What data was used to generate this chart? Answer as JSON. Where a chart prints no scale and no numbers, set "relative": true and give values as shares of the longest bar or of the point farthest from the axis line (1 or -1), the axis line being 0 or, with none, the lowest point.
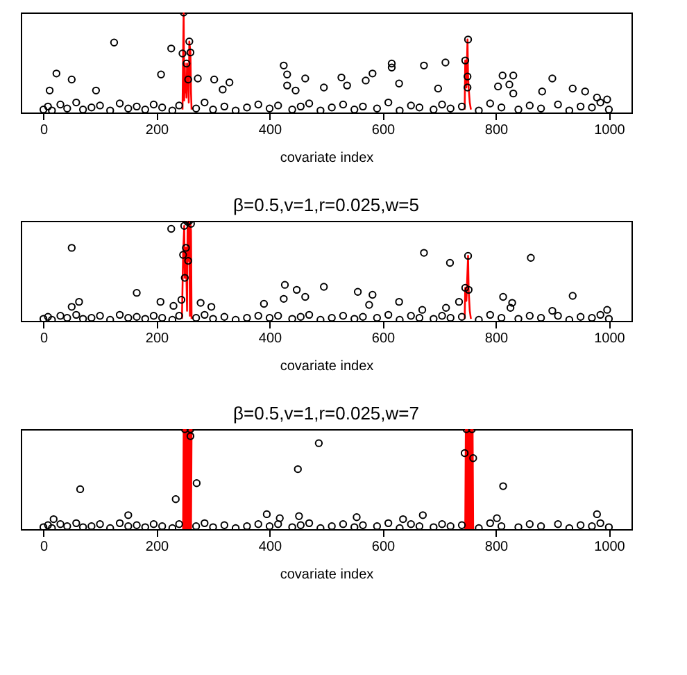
{
  "chart_data": [
    {
      "type": "scatter",
      "relative": true,
      "xlabel": "covariate index",
      "xlim": [
        -40,
        1040
      ],
      "xticks": [
        0,
        200,
        400,
        600,
        800,
        1000
      ],
      "tick_labels": "x",
      "series": [
        {
          "type": "line",
          "color": "#ff0000",
          "x": [
            246,
            247,
            248,
            249,
            250,
            251,
            252,
            253,
            254,
            256,
            257,
            258,
            260,
            261,
            262
          ],
          "values": [
            0.03,
            0.59,
            1.0,
            0.12,
            0.49,
            0.2,
            0.33,
            0.15,
            0.49,
            0.33,
            0.1,
            0.71,
            0.6,
            0.2,
            0.03
          ]
        },
        {
          "type": "line",
          "color": "#ff0000",
          "x": [
            745,
            746,
            748,
            750,
            751,
            752,
            754,
            756
          ],
          "values": [
            0.03,
            0.52,
            0.25,
            0.73,
            0.36,
            0.25,
            0.1,
            0.03
          ]
        },
        {
          "type": "scatter",
          "color": "#000000",
          "marker": "circle",
          "x": [
            0,
            8,
            15,
            30,
            42,
            58,
            70,
            85,
            100,
            118,
            135,
            150,
            165,
            180,
            195,
            210,
            228,
            240,
            270,
            285,
            300,
            320,
            340,
            360,
            380,
            400,
            415,
            440,
            455,
            470,
            490,
            510,
            530,
            550,
            565,
            590,
            610,
            630,
            650,
            665,
            690,
            705,
            720,
            740,
            770,
            790,
            810,
            840,
            860,
            880,
            910,
            930,
            950,
            970,
            985,
            1000,
            11,
            23,
            50,
            93,
            125,
            208,
            226,
            246,
            248,
            253,
            256,
            258,
            260,
            273,
            302,
            317,
            329,
            425,
            431,
            431,
            446,
            463,
            496,
            527,
            537,
            570,
            582,
            616,
            616,
            629,
            673,
            698,
            711,
            746,
            750,
            750,
            751,
            804,
            812,
            824,
            831,
            831,
            882,
            900,
            936,
            958,
            979,
            997
          ],
          "values": [
            0.03,
            0.06,
            0.02,
            0.08,
            0.04,
            0.1,
            0.03,
            0.05,
            0.07,
            0.02,
            0.09,
            0.04,
            0.06,
            0.03,
            0.08,
            0.05,
            0.02,
            0.07,
            0.04,
            0.1,
            0.03,
            0.06,
            0.02,
            0.05,
            0.08,
            0.04,
            0.07,
            0.03,
            0.06,
            0.09,
            0.02,
            0.05,
            0.08,
            0.03,
            0.06,
            0.04,
            0.1,
            0.02,
            0.07,
            0.05,
            0.03,
            0.08,
            0.04,
            0.06,
            0.02,
            0.09,
            0.05,
            0.03,
            0.07,
            0.04,
            0.08,
            0.02,
            0.06,
            0.05,
            0.1,
            0.03,
            0.22,
            0.39,
            0.33,
            0.22,
            0.7,
            0.38,
            0.64,
            0.59,
            1.0,
            0.49,
            0.33,
            0.71,
            0.6,
            0.34,
            0.33,
            0.23,
            0.3,
            0.47,
            0.38,
            0.27,
            0.22,
            0.34,
            0.25,
            0.35,
            0.27,
            0.32,
            0.39,
            0.49,
            0.45,
            0.29,
            0.47,
            0.24,
            0.5,
            0.52,
            0.36,
            0.25,
            0.73,
            0.26,
            0.37,
            0.28,
            0.37,
            0.19,
            0.21,
            0.34,
            0.24,
            0.21,
            0.15,
            0.13
          ]
        }
      ]
    },
    {
      "type": "scatter",
      "relative": true,
      "title": "β=0.5,v=1,r=0.025,w=5",
      "xlabel": "covariate index",
      "xlim": [
        -40,
        1040
      ],
      "xticks": [
        0,
        200,
        400,
        600,
        800,
        1000
      ],
      "tick_labels": "x",
      "series": [
        {
          "type": "line",
          "color": "#ff0000",
          "x": [
            245,
            247,
            249,
            250,
            252,
            254,
            255,
            256,
            257,
            258,
            259,
            260,
            261,
            262
          ],
          "values": [
            0.02,
            0.66,
            0.95,
            0.43,
            0.73,
            0.1,
            0.99,
            0.6,
            0.98,
            1.0,
            0.05,
            0.97,
            0.9,
            0.02
          ]
        },
        {
          "type": "line",
          "color": "#ff0000",
          "x": [
            745,
            746,
            748,
            751,
            752,
            754,
            756
          ],
          "values": [
            0.02,
            0.33,
            0.2,
            0.65,
            0.31,
            0.1,
            0.02
          ]
        },
        {
          "type": "scatter",
          "color": "#000000",
          "marker": "circle",
          "x": [
            0,
            8,
            15,
            30,
            42,
            58,
            70,
            85,
            100,
            118,
            135,
            150,
            165,
            180,
            195,
            210,
            228,
            240,
            270,
            285,
            300,
            320,
            340,
            360,
            380,
            400,
            415,
            440,
            455,
            470,
            490,
            510,
            530,
            550,
            565,
            590,
            610,
            630,
            650,
            665,
            690,
            705,
            720,
            740,
            770,
            790,
            810,
            840,
            860,
            880,
            910,
            930,
            950,
            970,
            985,
            1000,
            50,
            50,
            63,
            165,
            207,
            226,
            230,
            244,
            247,
            249,
            250,
            252,
            255,
            256,
            258,
            261,
            278,
            297,
            390,
            425,
            427,
            448,
            463,
            496,
            556,
            576,
            582,
            629,
            670,
            673,
            712,
            719,
            735,
            746,
            751,
            752,
            813,
            826,
            829,
            862,
            900,
            936,
            997
          ],
          "values": [
            0.02,
            0.04,
            0.01,
            0.05,
            0.03,
            0.06,
            0.02,
            0.03,
            0.05,
            0.01,
            0.06,
            0.03,
            0.04,
            0.02,
            0.05,
            0.03,
            0.01,
            0.05,
            0.03,
            0.06,
            0.02,
            0.04,
            0.01,
            0.03,
            0.05,
            0.03,
            0.05,
            0.02,
            0.04,
            0.06,
            0.01,
            0.03,
            0.05,
            0.02,
            0.04,
            0.03,
            0.06,
            0.01,
            0.05,
            0.03,
            0.02,
            0.05,
            0.03,
            0.04,
            0.01,
            0.06,
            0.03,
            0.02,
            0.05,
            0.03,
            0.05,
            0.01,
            0.04,
            0.03,
            0.06,
            0.02,
            0.73,
            0.14,
            0.19,
            0.28,
            0.19,
            0.92,
            0.15,
            0.21,
            0.66,
            0.95,
            0.43,
            0.73,
            0.99,
            0.6,
            1.0,
            0.97,
            0.18,
            0.14,
            0.17,
            0.22,
            0.36,
            0.31,
            0.24,
            0.34,
            0.29,
            0.16,
            0.26,
            0.19,
            0.11,
            0.68,
            0.13,
            0.58,
            0.19,
            0.33,
            0.65,
            0.31,
            0.24,
            0.13,
            0.18,
            0.63,
            0.1,
            0.25,
            0.11
          ]
        }
      ]
    },
    {
      "type": "scatter",
      "relative": true,
      "title": "β=0.5,v=1,r=0.025,w=7",
      "xlabel": "covariate index",
      "xlim": [
        -40,
        1040
      ],
      "xticks": [
        0,
        200,
        400,
        600,
        800,
        1000
      ],
      "tick_labels": "x",
      "series": [
        {
          "type": "line",
          "color": "#ff0000",
          "x": [
            247,
            248,
            249,
            250,
            251,
            252,
            253,
            254,
            255,
            256,
            257,
            258,
            259,
            260,
            261,
            262
          ],
          "values": [
            0.0,
            1.0,
            0.0,
            1.0,
            0.0,
            1.0,
            0.0,
            1.0,
            0.0,
            1.0,
            0.0,
            1.0,
            0.0,
            1.0,
            0.0,
            1.0
          ]
        },
        {
          "type": "line",
          "color": "#ff0000",
          "x": [
            746,
            747,
            748,
            749,
            750,
            751,
            752,
            753,
            754,
            755,
            756,
            757,
            758,
            759,
            760
          ],
          "values": [
            0.0,
            1.0,
            0.0,
            1.0,
            0.0,
            1.0,
            0.0,
            1.0,
            0.0,
            1.0,
            0.0,
            1.0,
            0.0,
            1.0,
            0.0
          ]
        },
        {
          "type": "scatter",
          "color": "#000000",
          "marker": "circle",
          "x": [
            0,
            8,
            15,
            30,
            42,
            58,
            70,
            85,
            100,
            118,
            135,
            150,
            165,
            180,
            195,
            210,
            228,
            240,
            270,
            285,
            300,
            320,
            340,
            360,
            380,
            400,
            415,
            440,
            455,
            470,
            490,
            510,
            530,
            550,
            565,
            590,
            610,
            630,
            650,
            665,
            690,
            705,
            720,
            740,
            770,
            790,
            810,
            840,
            860,
            880,
            910,
            930,
            950,
            970,
            985,
            1000,
            18,
            65,
            150,
            234,
            250,
            260,
            260,
            271,
            395,
            418,
            450,
            452,
            487,
            554,
            636,
            671,
            745,
            748,
            758,
            760,
            802,
            813,
            979
          ],
          "values": [
            0.02,
            0.04,
            0.01,
            0.05,
            0.03,
            0.06,
            0.02,
            0.03,
            0.05,
            0.01,
            0.06,
            0.03,
            0.04,
            0.02,
            0.05,
            0.03,
            0.01,
            0.05,
            0.03,
            0.06,
            0.02,
            0.04,
            0.01,
            0.03,
            0.05,
            0.03,
            0.05,
            0.02,
            0.04,
            0.06,
            0.01,
            0.03,
            0.05,
            0.02,
            0.04,
            0.03,
            0.06,
            0.01,
            0.05,
            0.03,
            0.02,
            0.05,
            0.03,
            0.04,
            0.01,
            0.06,
            0.03,
            0.02,
            0.05,
            0.03,
            0.05,
            0.01,
            0.04,
            0.03,
            0.06,
            0.02,
            0.1,
            0.4,
            0.14,
            0.3,
            1.0,
            1.0,
            0.93,
            0.46,
            0.15,
            0.11,
            0.6,
            0.13,
            0.86,
            0.12,
            0.1,
            0.14,
            0.76,
            1.0,
            1.0,
            0.71,
            0.11,
            0.43,
            0.15
          ]
        }
      ]
    }
  ]
}
